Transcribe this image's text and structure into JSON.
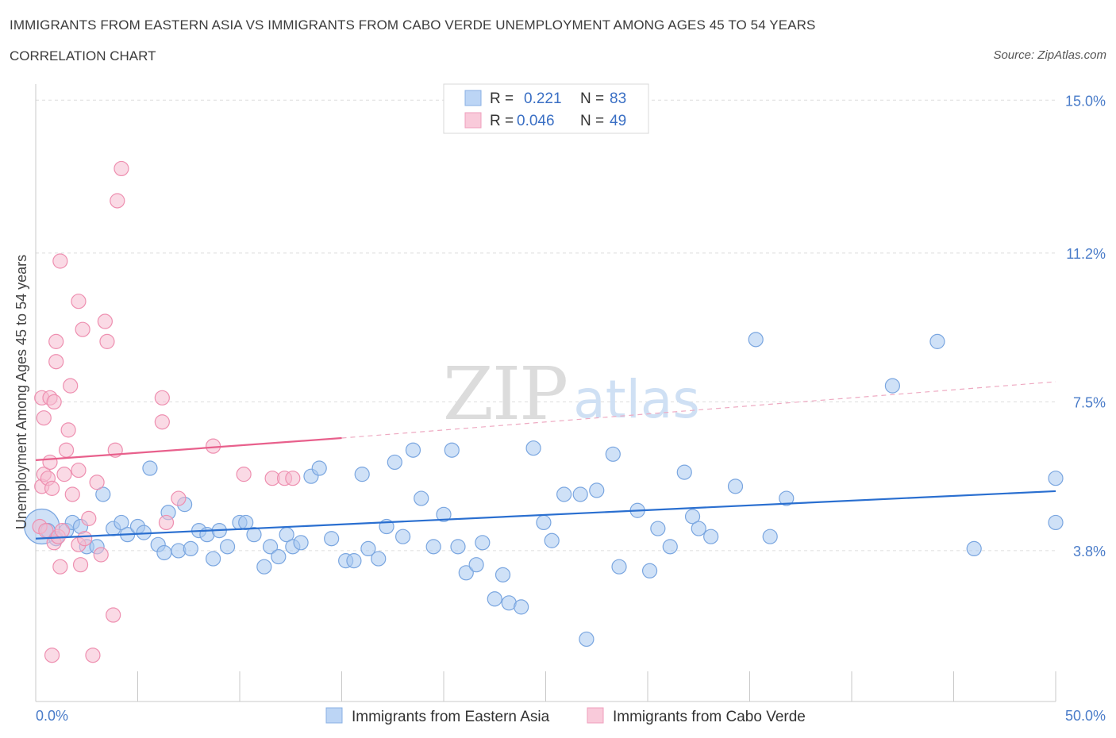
{
  "header": {
    "title": "IMMIGRANTS FROM EASTERN ASIA VS IMMIGRANTS FROM CABO VERDE UNEMPLOYMENT AMONG AGES 45 TO 54 YEARS",
    "subtitle": "CORRELATION CHART",
    "source": "Source: ZipAtlas.com"
  },
  "watermark": {
    "zip": "ZIP",
    "atlas": "atlas"
  },
  "legend": {
    "r_label": "R =",
    "n_label": "N =",
    "rows": [
      {
        "r": "0.221",
        "n": "83"
      },
      {
        "r": "0.046",
        "n": "49"
      }
    ]
  },
  "colors": {
    "blue_fill": "#a8c8f0",
    "blue_stroke": "#7aa6e0",
    "blue_line": "#2a6fd0",
    "pink_fill": "#f6bcd0",
    "pink_stroke": "#ee8fb0",
    "pink_line": "#e8608c",
    "tick": "#4a7cc9",
    "grid": "#dddddd"
  },
  "chart_data": {
    "type": "scatter",
    "title": "IMMIGRANTS FROM EASTERN ASIA VS IMMIGRANTS FROM CABO VERDE UNEMPLOYMENT AMONG AGES 45 TO 54 YEARS",
    "ylabel": "Unemployment Among Ages 45 to 54 years",
    "xlabel": "",
    "xlim": [
      0,
      50
    ],
    "ylim": [
      0.05,
      15.4
    ],
    "x_tick_labels": [
      {
        "value": 0,
        "label": "0.0%"
      },
      {
        "value": 50,
        "label": "50.0%"
      }
    ],
    "y_tick_labels": [
      {
        "value": 3.8,
        "label": "3.8%"
      },
      {
        "value": 7.5,
        "label": "7.5%"
      },
      {
        "value": 11.2,
        "label": "11.2%"
      },
      {
        "value": 15.0,
        "label": "15.0%"
      }
    ],
    "grid": true,
    "legend_position": "top-center",
    "series": [
      {
        "name": "Immigrants from Eastern Asia",
        "color": "#a8c8f0",
        "trend": {
          "x": [
            0,
            50
          ],
          "y": [
            4.1,
            5.28
          ]
        },
        "points": [
          {
            "x": 0.3,
            "y": 4.4,
            "s": 22
          },
          {
            "x": 0.6,
            "y": 4.3
          },
          {
            "x": 1.0,
            "y": 4.1
          },
          {
            "x": 1.5,
            "y": 4.3
          },
          {
            "x": 1.8,
            "y": 4.5
          },
          {
            "x": 2.2,
            "y": 4.4
          },
          {
            "x": 2.5,
            "y": 3.9
          },
          {
            "x": 3.0,
            "y": 3.9
          },
          {
            "x": 3.3,
            "y": 5.2
          },
          {
            "x": 3.8,
            "y": 4.35
          },
          {
            "x": 4.2,
            "y": 4.5
          },
          {
            "x": 4.5,
            "y": 4.2
          },
          {
            "x": 5.0,
            "y": 4.4
          },
          {
            "x": 5.3,
            "y": 4.25
          },
          {
            "x": 5.6,
            "y": 5.85
          },
          {
            "x": 6.0,
            "y": 3.95
          },
          {
            "x": 6.3,
            "y": 3.75
          },
          {
            "x": 6.5,
            "y": 4.75
          },
          {
            "x": 7.0,
            "y": 3.8
          },
          {
            "x": 7.3,
            "y": 4.95
          },
          {
            "x": 7.6,
            "y": 3.85
          },
          {
            "x": 8.0,
            "y": 4.3
          },
          {
            "x": 8.4,
            "y": 4.2
          },
          {
            "x": 8.7,
            "y": 3.6
          },
          {
            "x": 9.0,
            "y": 4.3
          },
          {
            "x": 9.4,
            "y": 3.9
          },
          {
            "x": 10.0,
            "y": 4.5
          },
          {
            "x": 10.3,
            "y": 4.5
          },
          {
            "x": 10.7,
            "y": 4.2
          },
          {
            "x": 11.2,
            "y": 3.4
          },
          {
            "x": 11.5,
            "y": 3.9
          },
          {
            "x": 11.9,
            "y": 3.65
          },
          {
            "x": 12.3,
            "y": 4.2
          },
          {
            "x": 12.6,
            "y": 3.9
          },
          {
            "x": 13.0,
            "y": 4.0
          },
          {
            "x": 13.5,
            "y": 5.65
          },
          {
            "x": 13.9,
            "y": 5.85
          },
          {
            "x": 14.5,
            "y": 4.1
          },
          {
            "x": 15.2,
            "y": 3.55
          },
          {
            "x": 15.6,
            "y": 3.55
          },
          {
            "x": 16.0,
            "y": 5.7
          },
          {
            "x": 16.3,
            "y": 3.85
          },
          {
            "x": 16.8,
            "y": 3.6
          },
          {
            "x": 17.2,
            "y": 4.4
          },
          {
            "x": 17.6,
            "y": 6.0
          },
          {
            "x": 18.0,
            "y": 4.15
          },
          {
            "x": 18.5,
            "y": 6.3
          },
          {
            "x": 18.9,
            "y": 5.1
          },
          {
            "x": 19.5,
            "y": 3.9
          },
          {
            "x": 20.0,
            "y": 4.7
          },
          {
            "x": 20.4,
            "y": 6.3
          },
          {
            "x": 20.7,
            "y": 3.9
          },
          {
            "x": 21.1,
            "y": 3.25
          },
          {
            "x": 21.6,
            "y": 3.45
          },
          {
            "x": 21.9,
            "y": 4.0
          },
          {
            "x": 22.5,
            "y": 2.6
          },
          {
            "x": 22.9,
            "y": 3.2
          },
          {
            "x": 23.2,
            "y": 2.5
          },
          {
            "x": 23.8,
            "y": 2.4
          },
          {
            "x": 24.4,
            "y": 6.35
          },
          {
            "x": 24.9,
            "y": 4.5
          },
          {
            "x": 25.3,
            "y": 4.05
          },
          {
            "x": 25.9,
            "y": 5.2
          },
          {
            "x": 26.7,
            "y": 5.2
          },
          {
            "x": 27.0,
            "y": 1.6
          },
          {
            "x": 27.5,
            "y": 5.3
          },
          {
            "x": 28.3,
            "y": 6.2
          },
          {
            "x": 28.6,
            "y": 3.4
          },
          {
            "x": 29.5,
            "y": 4.8
          },
          {
            "x": 30.1,
            "y": 3.3
          },
          {
            "x": 30.5,
            "y": 4.35
          },
          {
            "x": 31.1,
            "y": 3.9
          },
          {
            "x": 31.8,
            "y": 5.75
          },
          {
            "x": 32.2,
            "y": 4.65
          },
          {
            "x": 32.5,
            "y": 4.35
          },
          {
            "x": 33.1,
            "y": 4.15
          },
          {
            "x": 34.3,
            "y": 5.4
          },
          {
            "x": 35.3,
            "y": 9.05
          },
          {
            "x": 36.0,
            "y": 4.15
          },
          {
            "x": 36.8,
            "y": 5.1
          },
          {
            "x": 42.0,
            "y": 7.9
          },
          {
            "x": 44.2,
            "y": 9.0
          },
          {
            "x": 46.0,
            "y": 3.85
          },
          {
            "x": 50.0,
            "y": 4.5
          },
          {
            "x": 50.0,
            "y": 5.6
          }
        ]
      },
      {
        "name": "Immigrants from Cabo Verde",
        "color": "#f6bcd0",
        "trend": {
          "x": [
            0,
            15
          ],
          "y": [
            6.05,
            6.6
          ]
        },
        "trend_ext": {
          "x": [
            15,
            50
          ],
          "y": [
            6.6,
            8.0
          ]
        },
        "points": [
          {
            "x": 0.2,
            "y": 4.4
          },
          {
            "x": 0.3,
            "y": 5.4
          },
          {
            "x": 0.3,
            "y": 7.6
          },
          {
            "x": 0.4,
            "y": 5.7
          },
          {
            "x": 0.4,
            "y": 7.1
          },
          {
            "x": 0.5,
            "y": 4.3
          },
          {
            "x": 0.6,
            "y": 5.6
          },
          {
            "x": 0.7,
            "y": 6.0
          },
          {
            "x": 0.7,
            "y": 7.6
          },
          {
            "x": 0.8,
            "y": 5.35
          },
          {
            "x": 0.8,
            "y": 1.2
          },
          {
            "x": 0.9,
            "y": 4.0
          },
          {
            "x": 0.9,
            "y": 7.5
          },
          {
            "x": 1.0,
            "y": 8.5
          },
          {
            "x": 1.0,
            "y": 9.0
          },
          {
            "x": 1.1,
            "y": 4.15
          },
          {
            "x": 1.2,
            "y": 11.0
          },
          {
            "x": 1.2,
            "y": 3.4
          },
          {
            "x": 1.3,
            "y": 4.3
          },
          {
            "x": 1.4,
            "y": 5.7
          },
          {
            "x": 1.5,
            "y": 6.3
          },
          {
            "x": 1.6,
            "y": 6.8
          },
          {
            "x": 1.7,
            "y": 7.9
          },
          {
            "x": 1.8,
            "y": 5.2
          },
          {
            "x": 2.1,
            "y": 3.95
          },
          {
            "x": 2.1,
            "y": 5.8
          },
          {
            "x": 2.1,
            "y": 10.0
          },
          {
            "x": 2.2,
            "y": 3.45
          },
          {
            "x": 2.3,
            "y": 9.3
          },
          {
            "x": 2.4,
            "y": 4.1
          },
          {
            "x": 2.6,
            "y": 4.6
          },
          {
            "x": 2.8,
            "y": 1.2
          },
          {
            "x": 3.0,
            "y": 5.5
          },
          {
            "x": 3.2,
            "y": 3.7
          },
          {
            "x": 3.4,
            "y": 9.5
          },
          {
            "x": 3.5,
            "y": 9.0
          },
          {
            "x": 3.8,
            "y": 2.2
          },
          {
            "x": 3.9,
            "y": 6.3
          },
          {
            "x": 4.0,
            "y": 12.5
          },
          {
            "x": 4.2,
            "y": 13.3
          },
          {
            "x": 6.2,
            "y": 7.6
          },
          {
            "x": 6.2,
            "y": 7.0
          },
          {
            "x": 6.4,
            "y": 4.5
          },
          {
            "x": 7.0,
            "y": 5.1
          },
          {
            "x": 8.7,
            "y": 6.4
          },
          {
            "x": 10.2,
            "y": 5.7
          },
          {
            "x": 11.6,
            "y": 5.6
          },
          {
            "x": 12.2,
            "y": 5.6
          },
          {
            "x": 12.6,
            "y": 5.6
          }
        ]
      }
    ]
  }
}
